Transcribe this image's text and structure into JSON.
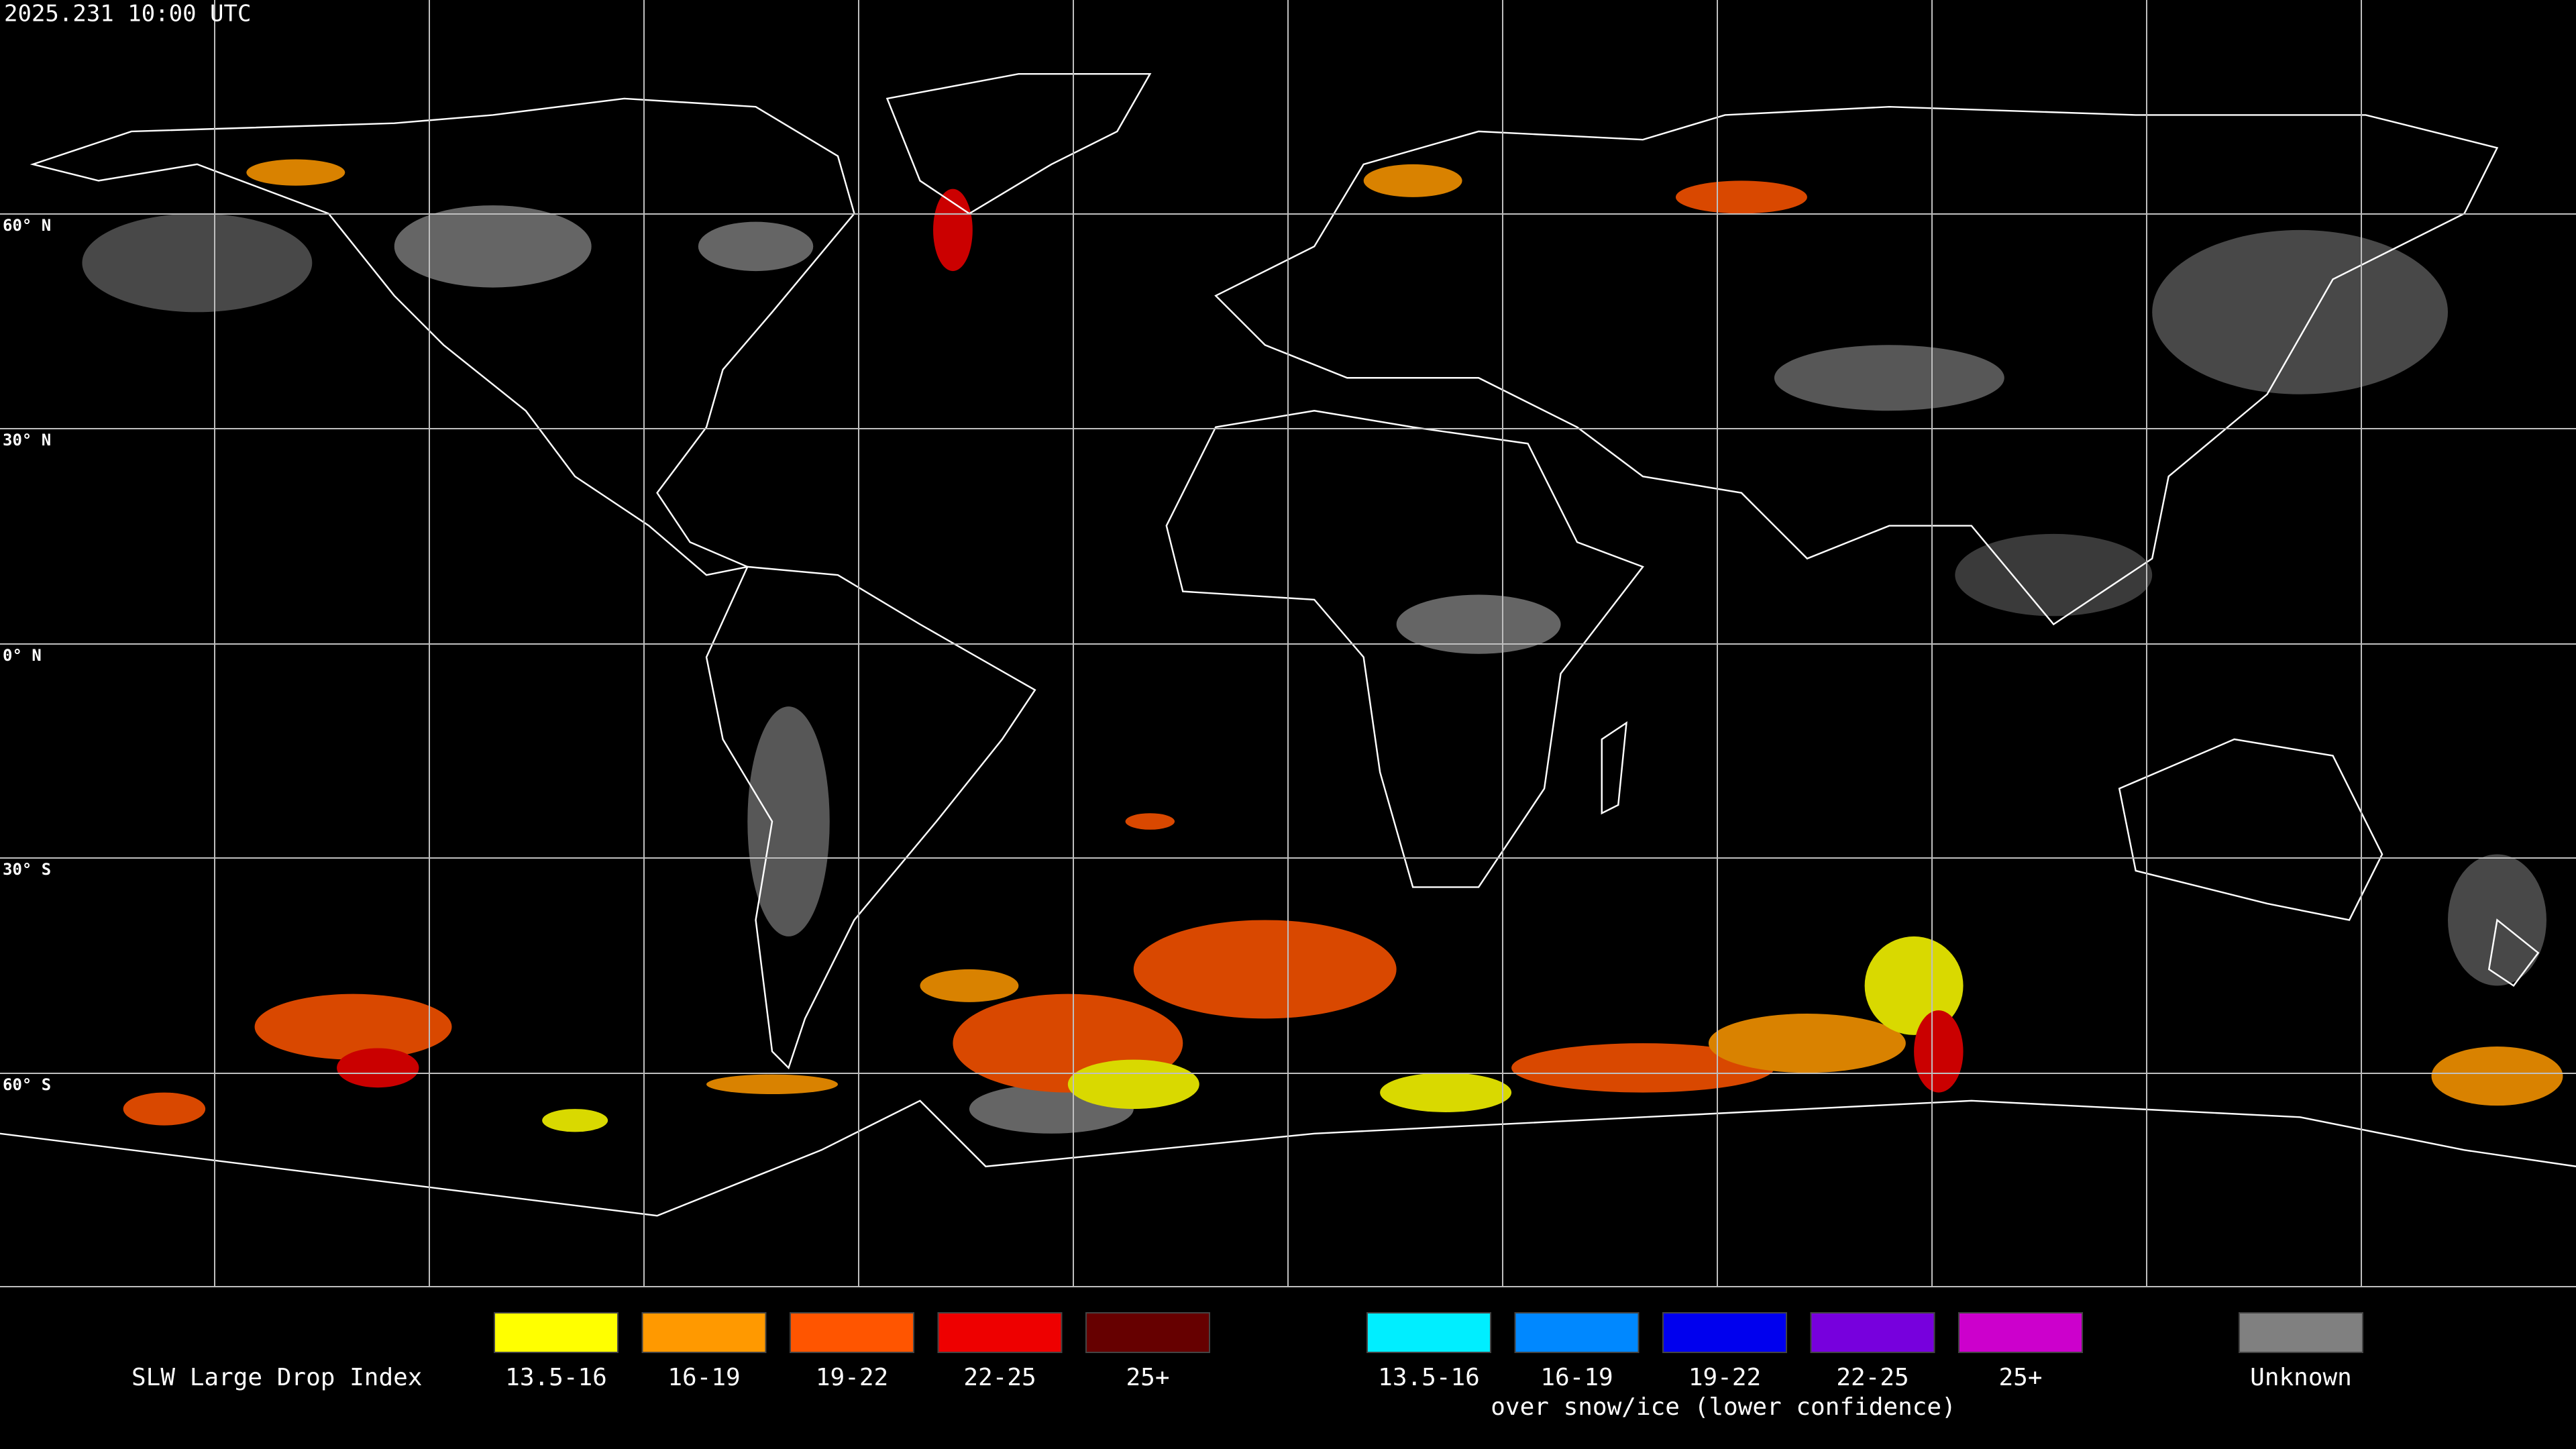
{
  "timestamp": "2025.231 10:00 UTC",
  "lat_labels": [
    "60° N",
    "30° N",
    "0° N",
    "30° S",
    "60° S"
  ],
  "legend": {
    "title": "SLW Large Drop Index",
    "items": [
      {
        "label": "13.5-16",
        "color": "#ffff00"
      },
      {
        "label": "16-19",
        "color": "#ff9900"
      },
      {
        "label": "19-22",
        "color": "#ff5500"
      },
      {
        "label": "22-25",
        "color": "#ee0000"
      },
      {
        "label": "25+",
        "color": "#660000"
      }
    ],
    "snow_items": [
      {
        "label": "13.5-16",
        "color": "#00eeff"
      },
      {
        "label": "16-19",
        "color": "#0088ff"
      },
      {
        "label": "19-22",
        "color": "#0000ee"
      },
      {
        "label": "22-25",
        "color": "#7700dd"
      },
      {
        "label": "25+",
        "color": "#cc00cc"
      }
    ],
    "snow_caption": "over snow/ice (lower confidence)",
    "unknown": {
      "label": "Unknown",
      "color": "#808080"
    }
  }
}
